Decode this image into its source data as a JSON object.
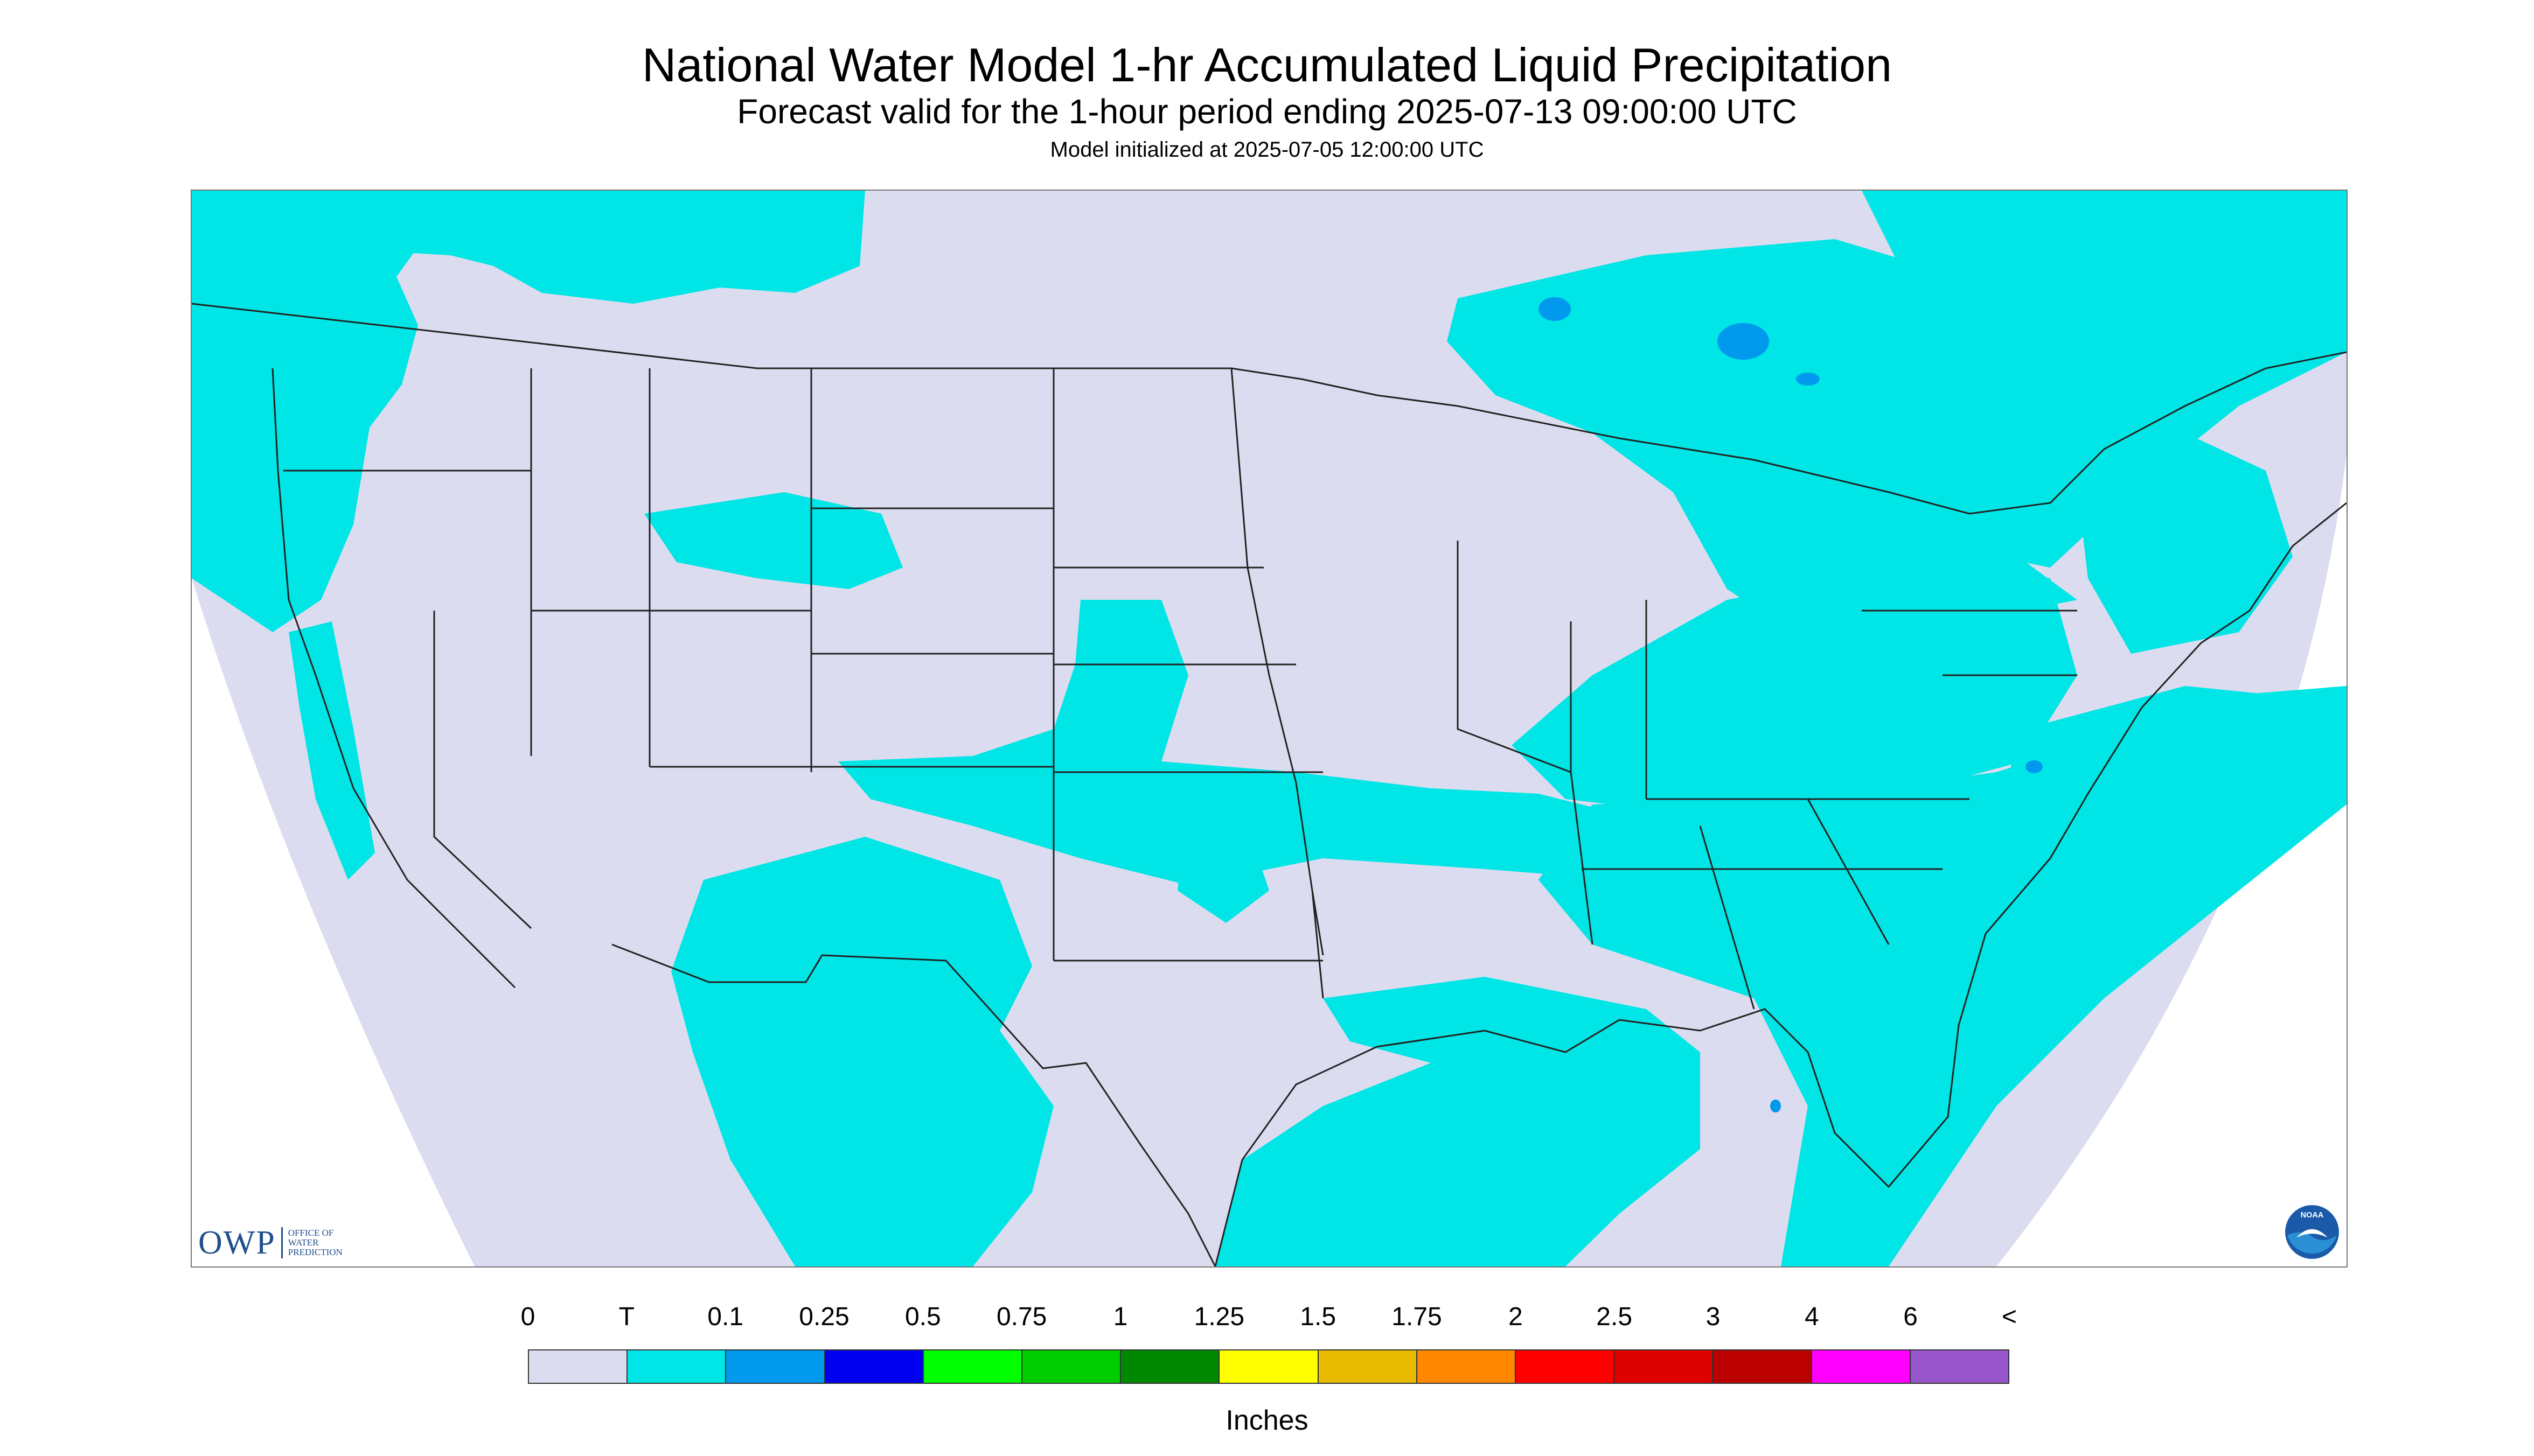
{
  "title": "National Water Model 1-hr Accumulated Liquid Precipitation",
  "subtitle": "Forecast valid for the 1-hour period ending 2025-07-13 09:00:00 UTC",
  "init_line": "Model initialized at 2025-07-05 12:00:00 UTC",
  "logos": {
    "owp_letters": "OWP",
    "owp_text": [
      "OFFICE OF",
      "WATER",
      "PREDICTION"
    ],
    "noaa_text": "NOAA"
  },
  "colors": {
    "map_background": "#dcdcf0",
    "outside_domain": "#ffffff",
    "boundary_lines": "#222222",
    "trace_precip": "#00e5e5",
    "light_precip": "#0099ee"
  },
  "legend": {
    "labels": [
      "0",
      "T",
      "0.1",
      "0.25",
      "0.5",
      "0.75",
      "1",
      "1.25",
      "1.5",
      "1.75",
      "2",
      "2.5",
      "3",
      "4",
      "6",
      "<"
    ],
    "colors": [
      "#dcdcf0",
      "#00e5e5",
      "#0099ee",
      "#0000ee",
      "#00ff00",
      "#00cc00",
      "#008800",
      "#ffff00",
      "#e6bb00",
      "#ff8800",
      "#ff0000",
      "#dd0000",
      "#bb0000",
      "#ff00ff",
      "#9955cc"
    ],
    "unit": "Inches"
  }
}
